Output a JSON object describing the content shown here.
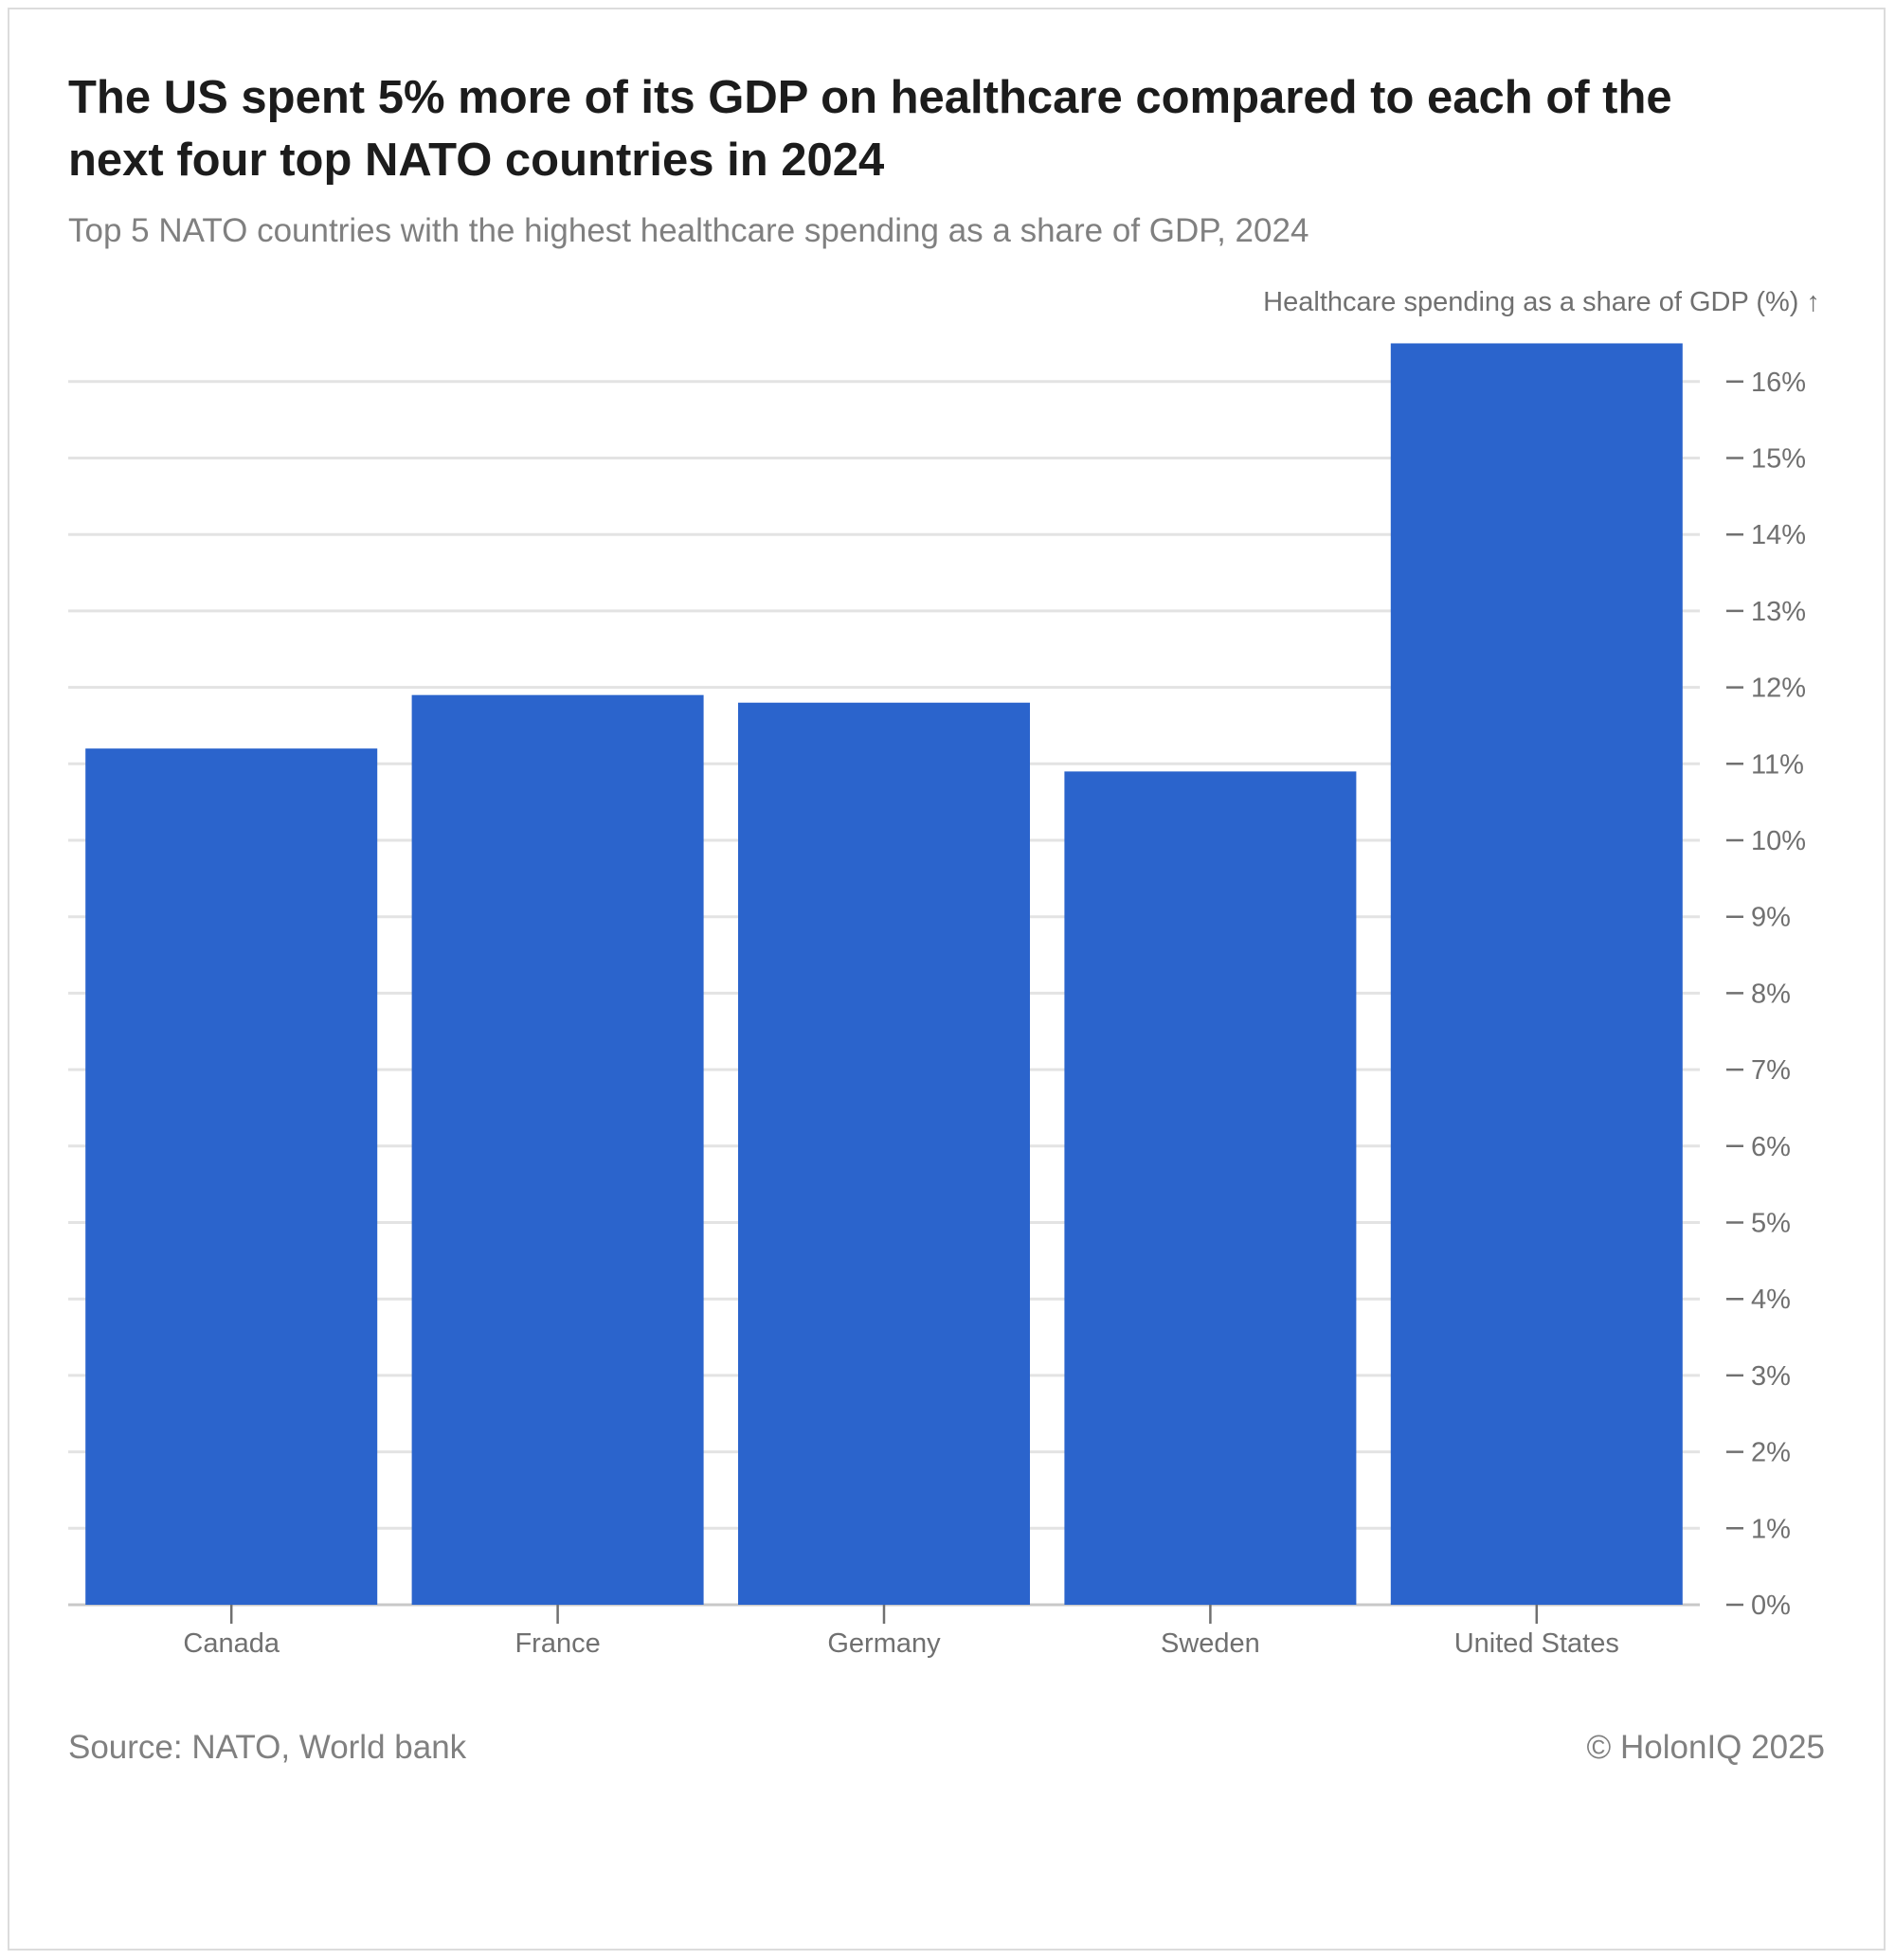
{
  "title": "The US spent 5% more of its GDP on healthcare compared to each of the next four top NATO countries in 2024",
  "subtitle": "Top 5 NATO countries with the highest healthcare spending as a share of GDP, 2024",
  "source": "Source: NATO, World bank",
  "copyright": "© HolonIQ 2025",
  "chart_data": {
    "type": "bar",
    "title": "The US spent 5% more of its GDP on healthcare compared to each of the next four top NATO countries in 2024",
    "subtitle": "Top 5 NATO countries with the highest healthcare spending as a share of GDP, 2024",
    "xlabel": "",
    "ylabel": "Healthcare spending as a share of GDP (%) ↑",
    "categories": [
      "Canada",
      "France",
      "Germany",
      "Sweden",
      "United States"
    ],
    "values": [
      11.2,
      11.9,
      11.8,
      10.9,
      16.5
    ],
    "ylim": [
      0,
      16.5
    ],
    "yticks": [
      "0%",
      "1%",
      "2%",
      "3%",
      "4%",
      "5%",
      "6%",
      "7%",
      "8%",
      "9%",
      "10%",
      "11%",
      "12%",
      "13%",
      "14%",
      "15%",
      "16%"
    ],
    "y_axis_position": "right",
    "grid": true,
    "bar_color": "#2b64cc"
  }
}
